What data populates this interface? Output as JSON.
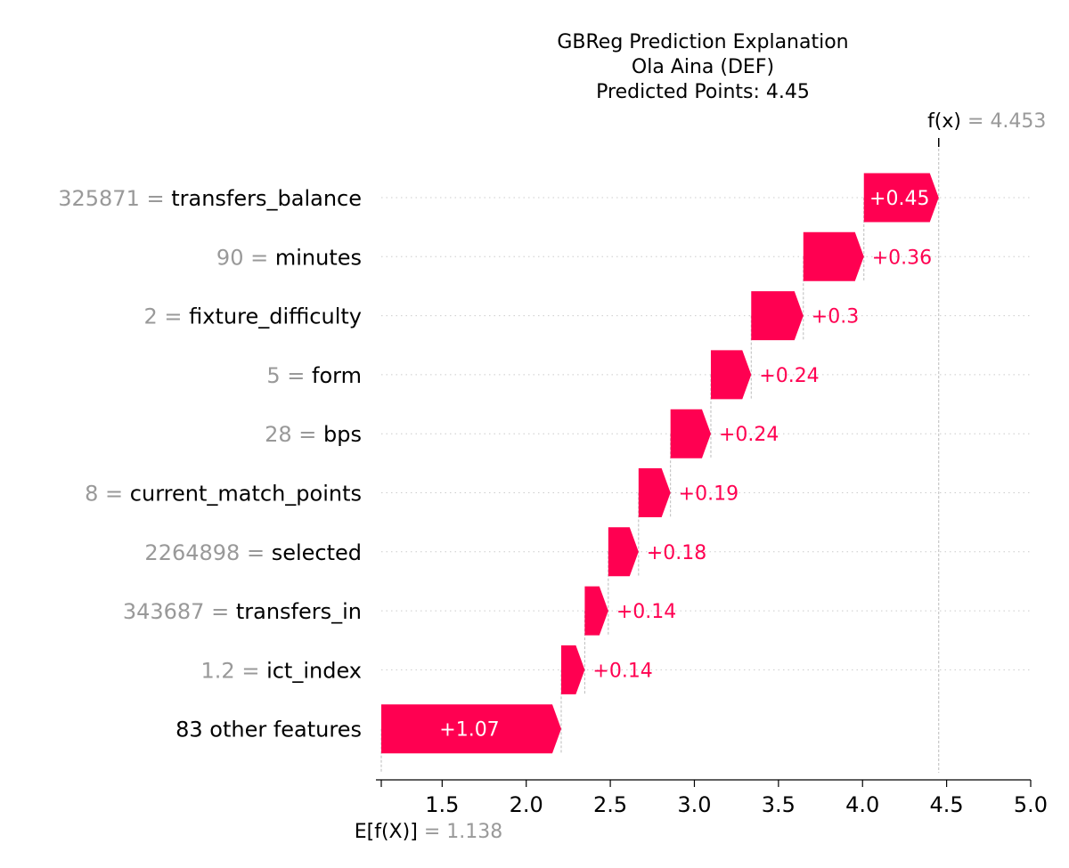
{
  "title": {
    "line1": "GBReg Prediction Explanation",
    "line2": "Ola Aina (DEF)",
    "line3": "Predicted Points: 4.45"
  },
  "fx": {
    "label": "f(x)",
    "value": "4.453"
  },
  "efx": {
    "label": "E[f(X)]",
    "value": "1.138"
  },
  "colors": {
    "positive": "#ff0051",
    "muted": "#999999",
    "grid": "#cccccc"
  },
  "chart_data": {
    "type": "waterfall",
    "base_value": 1.138,
    "final_value": 4.453,
    "xlim": [
      1.138,
      5.0
    ],
    "xticks": [
      1.5,
      2.0,
      2.5,
      3.0,
      3.5,
      4.0,
      4.5,
      5.0
    ],
    "xtick_labels": [
      "1.5",
      "2.0",
      "2.5",
      "3.0",
      "3.5",
      "4.0",
      "4.5",
      "5.0"
    ],
    "features": [
      {
        "value": "325871",
        "name": "transfers_balance",
        "contribution": 0.45,
        "label": "+0.45"
      },
      {
        "value": "90",
        "name": "minutes",
        "contribution": 0.36,
        "label": "+0.36"
      },
      {
        "value": "2",
        "name": "fixture_difficulty",
        "contribution": 0.31,
        "label": "+0.3"
      },
      {
        "value": "5",
        "name": "form",
        "contribution": 0.24,
        "label": "+0.24"
      },
      {
        "value": "28",
        "name": "bps",
        "contribution": 0.24,
        "label": "+0.24"
      },
      {
        "value": "8",
        "name": "current_match_points",
        "contribution": 0.19,
        "label": "+0.19"
      },
      {
        "value": "2264898",
        "name": "selected",
        "contribution": 0.18,
        "label": "+0.18"
      },
      {
        "value": "343687",
        "name": "transfers_in",
        "contribution": 0.14,
        "label": "+0.14"
      },
      {
        "value": "1.2",
        "name": "ict_index",
        "contribution": 0.14,
        "label": "+0.14"
      },
      {
        "value": "",
        "name": "83 other features",
        "contribution": 1.07,
        "label": "+1.07"
      }
    ]
  }
}
